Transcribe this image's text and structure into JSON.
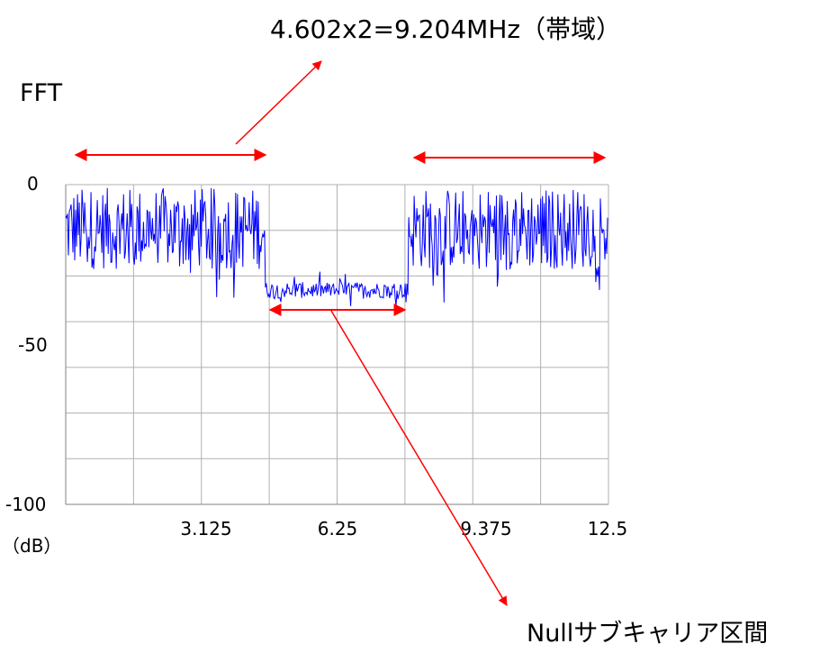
{
  "annotations": {
    "bandwidth": "4.602x2=9.204MHz（帯域）",
    "fft_label": "FFT",
    "null_label": "Nullサブキャリア区間",
    "arrow_color": "#ff0000"
  },
  "chart_data": {
    "type": "line",
    "xlim": [
      0,
      12.5
    ],
    "ylim": [
      -100,
      0
    ],
    "x_ticks": [
      "3.125",
      "6.25",
      "9.375",
      "12.5"
    ],
    "y_ticks": [
      "0",
      "-50",
      "-100"
    ],
    "y_unit": "（dB）",
    "grid": true,
    "series": [
      {
        "color": "#0000ff",
        "segments": [
          {
            "x_range": [
              0,
              4.6
            ],
            "level": -15,
            "spread": 8
          },
          {
            "x_range": [
              4.6,
              7.9
            ],
            "level": -33,
            "spread": 2
          },
          {
            "x_range": [
              7.9,
              12.5
            ],
            "level": -15,
            "spread": 8
          }
        ]
      }
    ]
  }
}
